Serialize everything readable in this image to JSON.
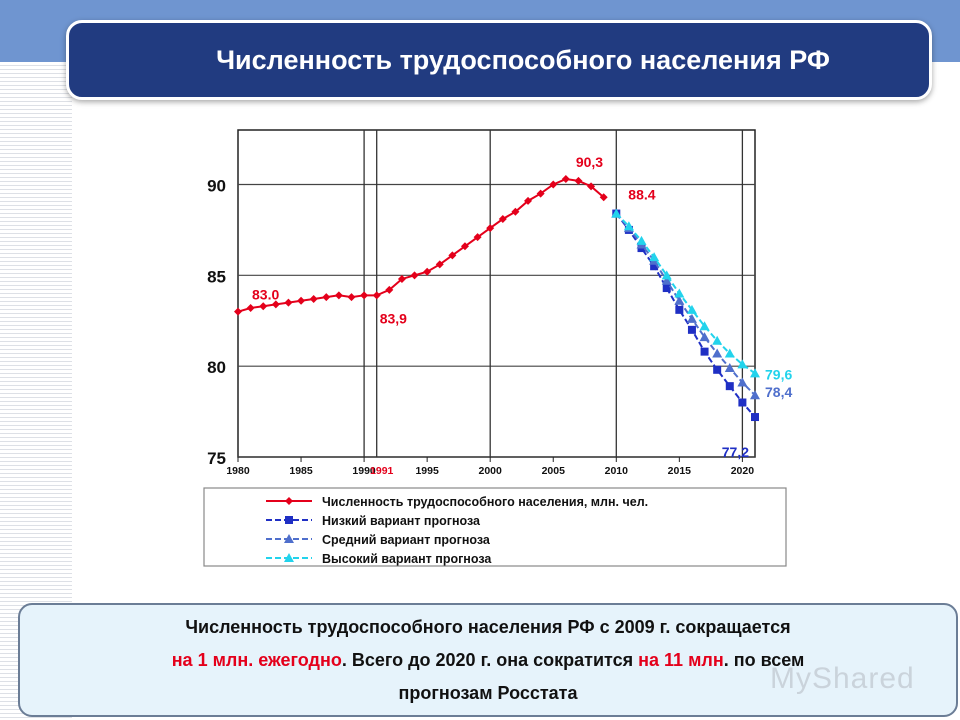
{
  "slide": {
    "title": "Численность трудоспособного населения РФ",
    "summary": {
      "line1": "Численность трудоспособного населения РФ с 2009 г. сокращается",
      "line2_red1": "на 1 млн. ежегодно",
      "line2_mid": ". Всего до 2020 г. она сократится ",
      "line2_red2": "на 11 млн",
      "line2_end": ". по всем",
      "line3": "прогнозам Росстата"
    },
    "watermark": "MyShared"
  },
  "chart_data": {
    "type": "line",
    "title": "",
    "xlabel": "",
    "ylabel": "",
    "xlim": [
      1980,
      2021
    ],
    "ylim": [
      75,
      93
    ],
    "x_ticks": [
      1980,
      1985,
      1990,
      1995,
      2000,
      2005,
      2010,
      2015,
      2020
    ],
    "x_tick_labels": [
      "1980",
      "1985",
      "1990",
      "1995",
      "2000",
      "2005",
      "2010",
      "2015",
      "2020"
    ],
    "y_ticks": [
      75,
      80,
      85,
      90
    ],
    "y_tick_labels": [
      "75",
      "80",
      "85",
      "90"
    ],
    "extra_x_label": {
      "text": "1991",
      "x": 1991
    },
    "vertical_lines": [
      1990,
      1991,
      2000,
      2010,
      2020
    ],
    "grid": true,
    "legend_position": "bottom",
    "series": [
      {
        "name": "Численность трудоспособного населения, млн. чел.",
        "color": "#e4001b",
        "marker": "diamond",
        "x": [
          1980,
          1981,
          1982,
          1983,
          1984,
          1985,
          1986,
          1987,
          1988,
          1989,
          1990,
          1991,
          1992,
          1993,
          1994,
          1995,
          1996,
          1997,
          1998,
          1999,
          2000,
          2001,
          2002,
          2003,
          2004,
          2005,
          2006,
          2007,
          2008,
          2009
        ],
        "values": [
          83.0,
          83.2,
          83.3,
          83.4,
          83.5,
          83.6,
          83.7,
          83.8,
          83.9,
          83.8,
          83.9,
          83.9,
          84.2,
          84.8,
          85.0,
          85.2,
          85.6,
          86.1,
          86.6,
          87.1,
          87.6,
          88.1,
          88.5,
          89.1,
          89.5,
          90.0,
          90.3,
          90.2,
          89.9,
          89.3
        ]
      },
      {
        "name": "Низкий вариант прогноза",
        "color": "#1f2fc4",
        "marker": "square",
        "x": [
          2010,
          2011,
          2012,
          2013,
          2014,
          2015,
          2016,
          2017,
          2018,
          2019,
          2020,
          2021
        ],
        "values": [
          88.4,
          87.5,
          86.5,
          85.5,
          84.3,
          83.1,
          82.0,
          80.8,
          79.8,
          78.9,
          78.0,
          77.2
        ]
      },
      {
        "name": "Средний вариант прогноза",
        "color": "#4f6fcc",
        "marker": "triangle",
        "x": [
          2010,
          2011,
          2012,
          2013,
          2014,
          2015,
          2016,
          2017,
          2018,
          2019,
          2020,
          2021
        ],
        "values": [
          88.4,
          87.6,
          86.7,
          85.8,
          84.7,
          83.6,
          82.6,
          81.6,
          80.7,
          79.9,
          79.1,
          78.4
        ]
      },
      {
        "name": "Высокий вариант прогноза",
        "color": "#22d3ec",
        "marker": "triangle",
        "x": [
          2010,
          2011,
          2012,
          2013,
          2014,
          2015,
          2016,
          2017,
          2018,
          2019,
          2020,
          2021
        ],
        "values": [
          88.4,
          87.7,
          86.9,
          86.0,
          85.0,
          84.0,
          83.1,
          82.2,
          81.4,
          80.7,
          80.1,
          79.6
        ]
      }
    ],
    "annotations": [
      {
        "text": "83.0",
        "x": 1980,
        "y": 83.0,
        "color": "#e4001b"
      },
      {
        "text": "83,9",
        "x": 1991,
        "y": 83.9,
        "color": "#e4001b"
      },
      {
        "text": "90,3",
        "x": 2006,
        "y": 90.3,
        "color": "#e4001b"
      },
      {
        "text": "88.4",
        "x": 2010,
        "y": 88.4,
        "color": "#e4001b"
      },
      {
        "text": "79,6",
        "x": 2021,
        "y": 79.6,
        "color": "#22d3ec"
      },
      {
        "text": "78,4",
        "x": 2021,
        "y": 78.4,
        "color": "#4f6fcc"
      },
      {
        "text": "77,2",
        "x": 2021,
        "y": 77.2,
        "color": "#1f2fc4"
      }
    ]
  }
}
